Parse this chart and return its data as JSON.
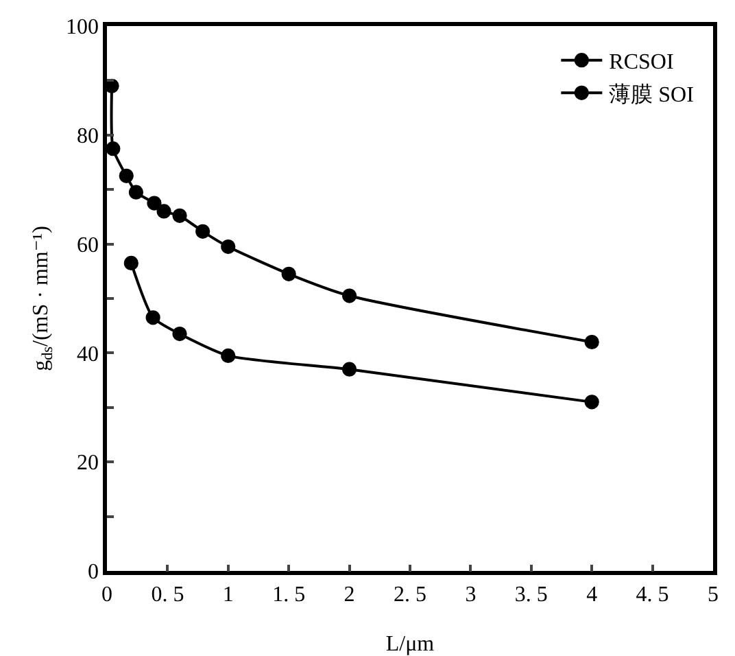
{
  "chart_data": {
    "type": "line",
    "xlabel": "L/μm",
    "ylabel": "g$_{ds}$/(mS · mm⁻¹)",
    "xlim": [
      0,
      5
    ],
    "xticks": [
      0,
      {
        "value": 0.5,
        "label": "0. 5"
      },
      1,
      {
        "value": 1.5,
        "label": "1. 5"
      },
      2,
      {
        "value": 2.5,
        "label": "2. 5"
      },
      3,
      {
        "value": 3.5,
        "label": "3. 5"
      },
      4,
      {
        "value": 4.5,
        "label": "4. 5"
      },
      5
    ],
    "ylim": [
      0,
      100
    ],
    "yticks": [
      0,
      {
        "value": 10,
        "label": null
      },
      20,
      {
        "value": 30,
        "label": null
      },
      40,
      {
        "value": 50,
        "label": null
      },
      60,
      {
        "value": 70,
        "label": null
      },
      80,
      {
        "value": 90,
        "label": null
      },
      100
    ],
    "grid": false,
    "legend": "top right",
    "marker": "circle",
    "line_style": "solid",
    "series": [
      {
        "name": "RCSOI",
        "color": "#000000",
        "x": [
          0.04,
          0.05,
          0.16,
          0.24,
          0.39,
          0.47,
          0.6,
          0.79,
          1.0,
          1.5,
          2.0,
          4.0
        ],
        "values": [
          89,
          77.5,
          72.5,
          69.5,
          67.5,
          66,
          65.2,
          62.3,
          59.5,
          54.5,
          50.5,
          42
        ]
      },
      {
        "name": "薄膜 SOI",
        "color": "#000000",
        "x": [
          0.2,
          0.38,
          0.6,
          1.0,
          2.0,
          4.0
        ],
        "values": [
          56.5,
          46.5,
          43.5,
          39.5,
          37,
          31
        ]
      }
    ]
  }
}
